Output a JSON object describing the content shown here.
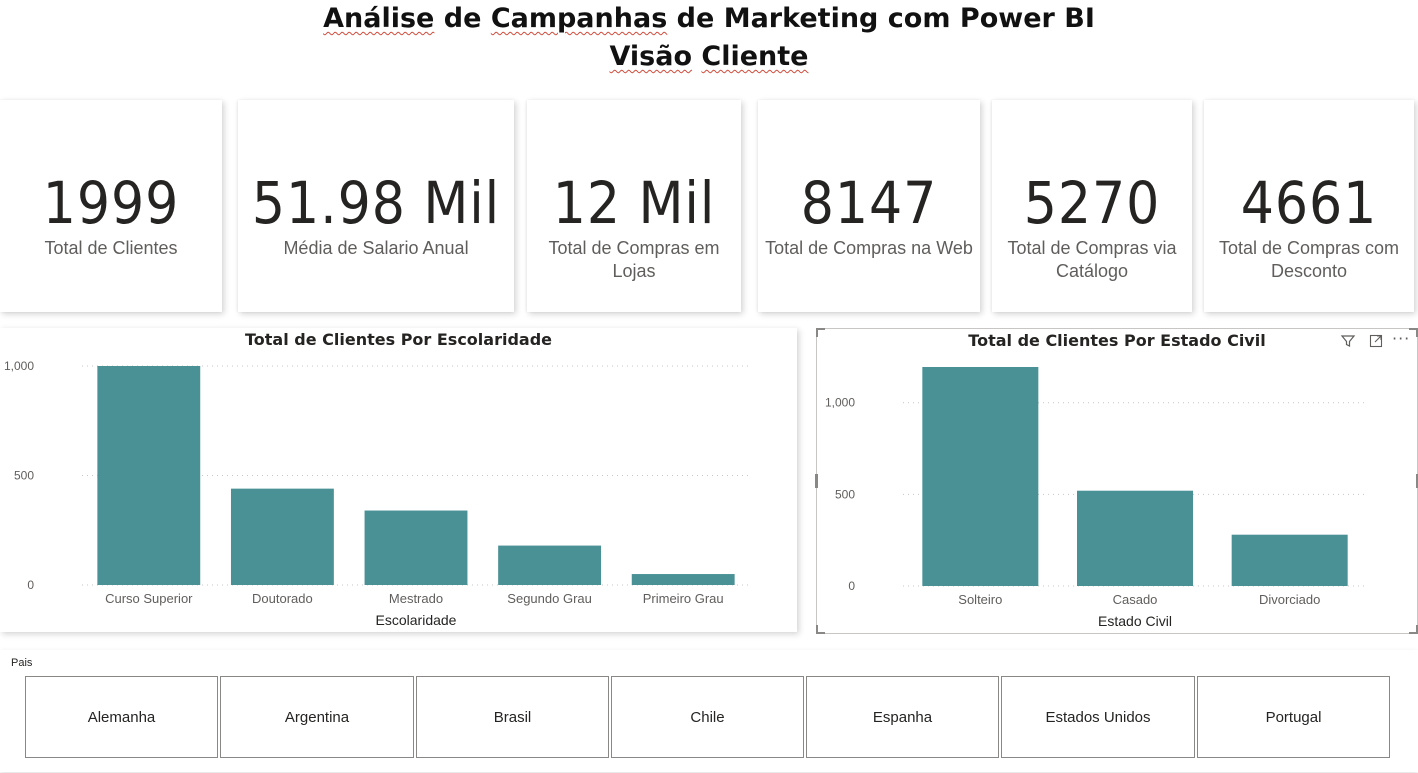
{
  "header": {
    "title_line1_words": [
      "Análise",
      "de",
      "Campanhas",
      "de",
      "Marketing",
      "com",
      "Power",
      "BI"
    ],
    "title_line2_words": [
      "Visão",
      "Cliente"
    ]
  },
  "kpis": [
    {
      "value": "1999",
      "label": "Total de Clientes"
    },
    {
      "value": "51.98 Mil",
      "label": "Média de Salario Anual"
    },
    {
      "value": "12 Mil",
      "label": "Total de Compras em Lojas"
    },
    {
      "value": "8147",
      "label": "Total de Compras na Web"
    },
    {
      "value": "5270",
      "label": "Total de Compras via Catálogo"
    },
    {
      "value": "4661",
      "label": "Total de Compras com Desconto"
    }
  ],
  "chart_data": [
    {
      "type": "bar",
      "title": "Total de Clientes Por Escolaridade",
      "xlabel": "Escolaridade",
      "ylabel": "",
      "categories": [
        "Curso Superior",
        "Doutorado",
        "Mestrado",
        "Segundo Grau",
        "Primeiro Grau"
      ],
      "values": [
        1000,
        440,
        340,
        180,
        50
      ],
      "ylim": [
        0,
        1000
      ],
      "yticks": [
        0,
        500,
        1000
      ],
      "ytick_labels": [
        "0",
        "500",
        "1,000"
      ],
      "grid": true,
      "color": "#4a9196"
    },
    {
      "type": "bar",
      "title": "Total de Clientes Por Estado Civil",
      "xlabel": "Estado Civil",
      "ylabel": "",
      "categories": [
        "Solteiro",
        "Casado",
        "Divorciado"
      ],
      "values": [
        1195,
        520,
        280
      ],
      "ylim": [
        0,
        1195
      ],
      "yticks": [
        0,
        500,
        1000
      ],
      "ytick_labels": [
        "0",
        "500",
        "1,000"
      ],
      "grid": true,
      "color": "#4a9196"
    }
  ],
  "visual_header": {
    "icons": [
      "filter-icon",
      "focus-mode-icon",
      "more-options-icon"
    ]
  },
  "slicer": {
    "label": "Pais",
    "options": [
      "Alemanha",
      "Argentina",
      "Brasil",
      "Chile",
      "Espanha",
      "Estados Unidos",
      "Portugal"
    ]
  }
}
